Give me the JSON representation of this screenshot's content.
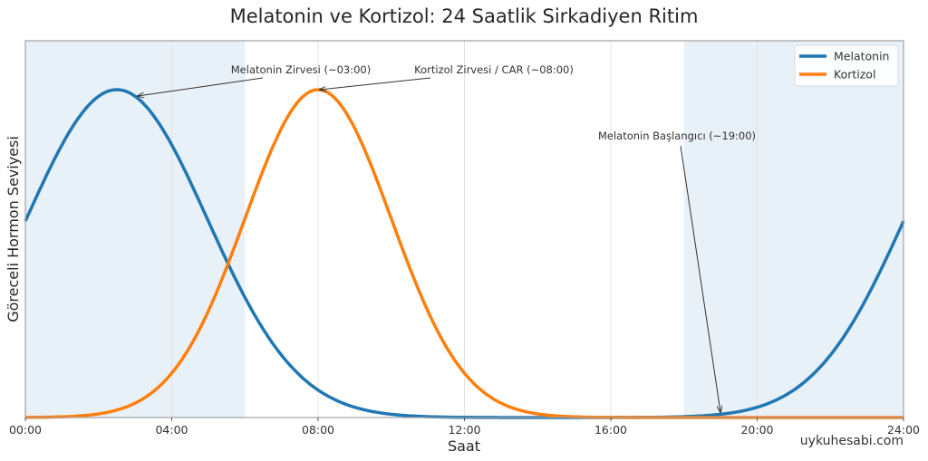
{
  "chart_data": {
    "type": "line",
    "title": "Melatonin ve Kortizol: 24 Saatlik Sirkadiyen Ritim",
    "xlabel": "Saat",
    "ylabel": "Göreceli Hormon Seviyesi",
    "xlim": [
      0,
      24
    ],
    "ylim": [
      0,
      1.15
    ],
    "xticks": [
      0,
      4,
      8,
      12,
      16,
      20,
      24
    ],
    "xtick_labels": [
      "00:00",
      "04:00",
      "08:00",
      "12:00",
      "16:00",
      "20:00",
      "24:00"
    ],
    "grid": true,
    "legend_position": "upper right",
    "shaded_regions": [
      {
        "from": 0,
        "to": 6,
        "color": "#e8f0f8"
      },
      {
        "from": 18,
        "to": 24,
        "color": "#e8f0f8"
      }
    ],
    "series": [
      {
        "name": "Melatonin",
        "color": "#1f77b4",
        "model": "gaussian_periodic",
        "center": 2.5,
        "sigma": 2.47,
        "peak": 1.0,
        "x": [
          0,
          2,
          2.5,
          4,
          6,
          8,
          10,
          12,
          14,
          16,
          18,
          19,
          20,
          22,
          24
        ],
        "values": [
          0.6,
          0.98,
          1.0,
          0.83,
          0.37,
          0.08,
          0.01,
          0.0,
          0.0,
          0.0,
          0.0,
          0.01,
          0.05,
          0.23,
          0.6
        ]
      },
      {
        "name": "Kortizol",
        "color": "#ff7f0e",
        "model": "gaussian",
        "center": 8,
        "sigma": 2.0,
        "peak": 1.0,
        "x": [
          0,
          2,
          4,
          6,
          7,
          8,
          9,
          10,
          12,
          14,
          16,
          20,
          24
        ],
        "values": [
          0.0,
          0.01,
          0.14,
          0.61,
          0.88,
          1.0,
          0.88,
          0.61,
          0.14,
          0.01,
          0.0,
          0.0,
          0.0
        ]
      }
    ],
    "annotations": [
      {
        "text": "Melatonin Zirvesi (~03:00)",
        "target_x": 3,
        "series": "Melatonin"
      },
      {
        "text": "Kortizol Zirvesi / CAR (~08:00)",
        "target_x": 8,
        "series": "Kortizol"
      },
      {
        "text": "Melatonin Başlangıcı (~19:00)",
        "target_x": 19,
        "series": "Melatonin"
      }
    ],
    "watermark": "uykuhesabi.com"
  }
}
